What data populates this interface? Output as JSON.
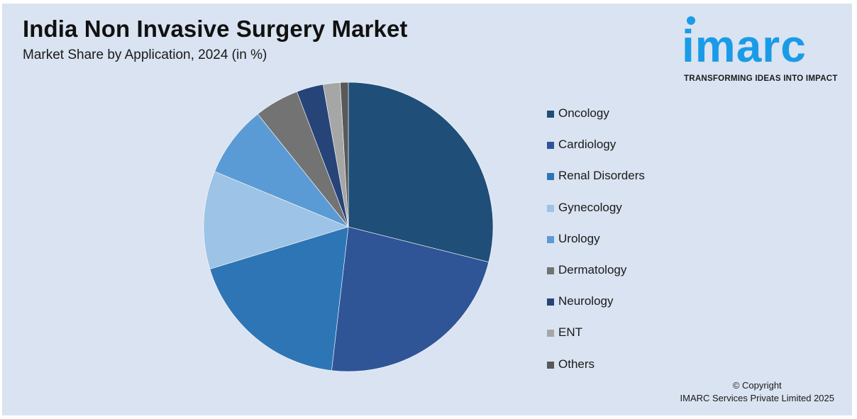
{
  "header": {
    "title": "India Non Invasive Surgery Market",
    "subtitle": "Market Share by Application, 2024 (in %)"
  },
  "logo": {
    "word": "imarc",
    "tagline": "TRANSFORMING IDEAS INTO IMPACT",
    "color": "#1a9be8"
  },
  "footer": {
    "copyright_line1": "© Copyright",
    "copyright_line2": "IMARC Services Private Limited 2025"
  },
  "chart_data": {
    "type": "pie",
    "title": "India Non Invasive Surgery Market",
    "subtitle": "Market Share by Application, 2024 (in %)",
    "legend_position": "right",
    "start_angle_deg": 0,
    "direction": "clockwise",
    "slices": [
      {
        "label": "Oncology",
        "value": 29.0,
        "color": "#1f4e79"
      },
      {
        "label": "Cardiology",
        "value": 23.0,
        "color": "#2f5597"
      },
      {
        "label": "Renal Disorders",
        "value": 18.5,
        "color": "#2e75b6"
      },
      {
        "label": "Gynecology",
        "value": 11.0,
        "color": "#9dc3e6"
      },
      {
        "label": "Urology",
        "value": 8.0,
        "color": "#5b9bd5"
      },
      {
        "label": "Dermatology",
        "value": 5.0,
        "color": "#737373"
      },
      {
        "label": "Neurology",
        "value": 3.0,
        "color": "#264478"
      },
      {
        "label": "ENT",
        "value": 1.9,
        "color": "#a6a6a6"
      },
      {
        "label": "Others",
        "value": 0.9,
        "color": "#595959"
      }
    ]
  }
}
